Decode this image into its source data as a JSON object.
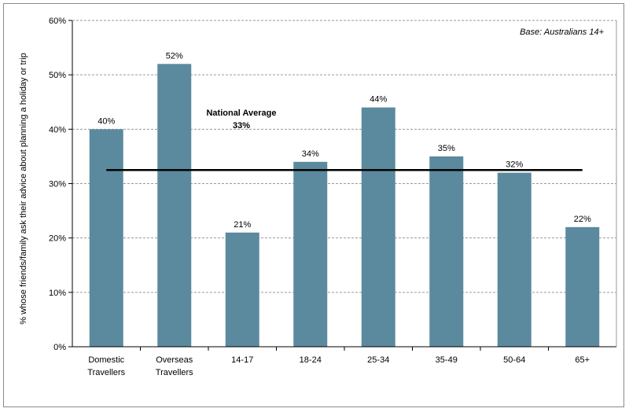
{
  "chart_data": {
    "type": "bar",
    "categories": [
      [
        "Domestic",
        "Travellers"
      ],
      [
        "Overseas",
        "Travellers"
      ],
      [
        "14-17"
      ],
      [
        "18-24"
      ],
      [
        "25-34"
      ],
      [
        "35-49"
      ],
      [
        "50-64"
      ],
      [
        "65+"
      ]
    ],
    "values": [
      40,
      52,
      21,
      34,
      44,
      35,
      32,
      22
    ],
    "data_labels": [
      "40%",
      "52%",
      "21%",
      "34%",
      "44%",
      "35%",
      "32%",
      "22%"
    ],
    "ylabel": "% whose friends/family ask their advice about planning a holiday or trip",
    "ylim": [
      0,
      60
    ],
    "yticks": [
      0,
      10,
      20,
      30,
      40,
      50,
      60
    ],
    "ytick_labels": [
      "0%",
      "10%",
      "20%",
      "30%",
      "40%",
      "50%",
      "60%"
    ],
    "grid": "horizontal dashed",
    "annotation_base": "Base: Australians 14+",
    "reference_line": {
      "label_line1": "National Average",
      "label_line2": "33%",
      "value": 33
    },
    "bar_color": "#5b8a9e",
    "line_color": "#000000"
  }
}
